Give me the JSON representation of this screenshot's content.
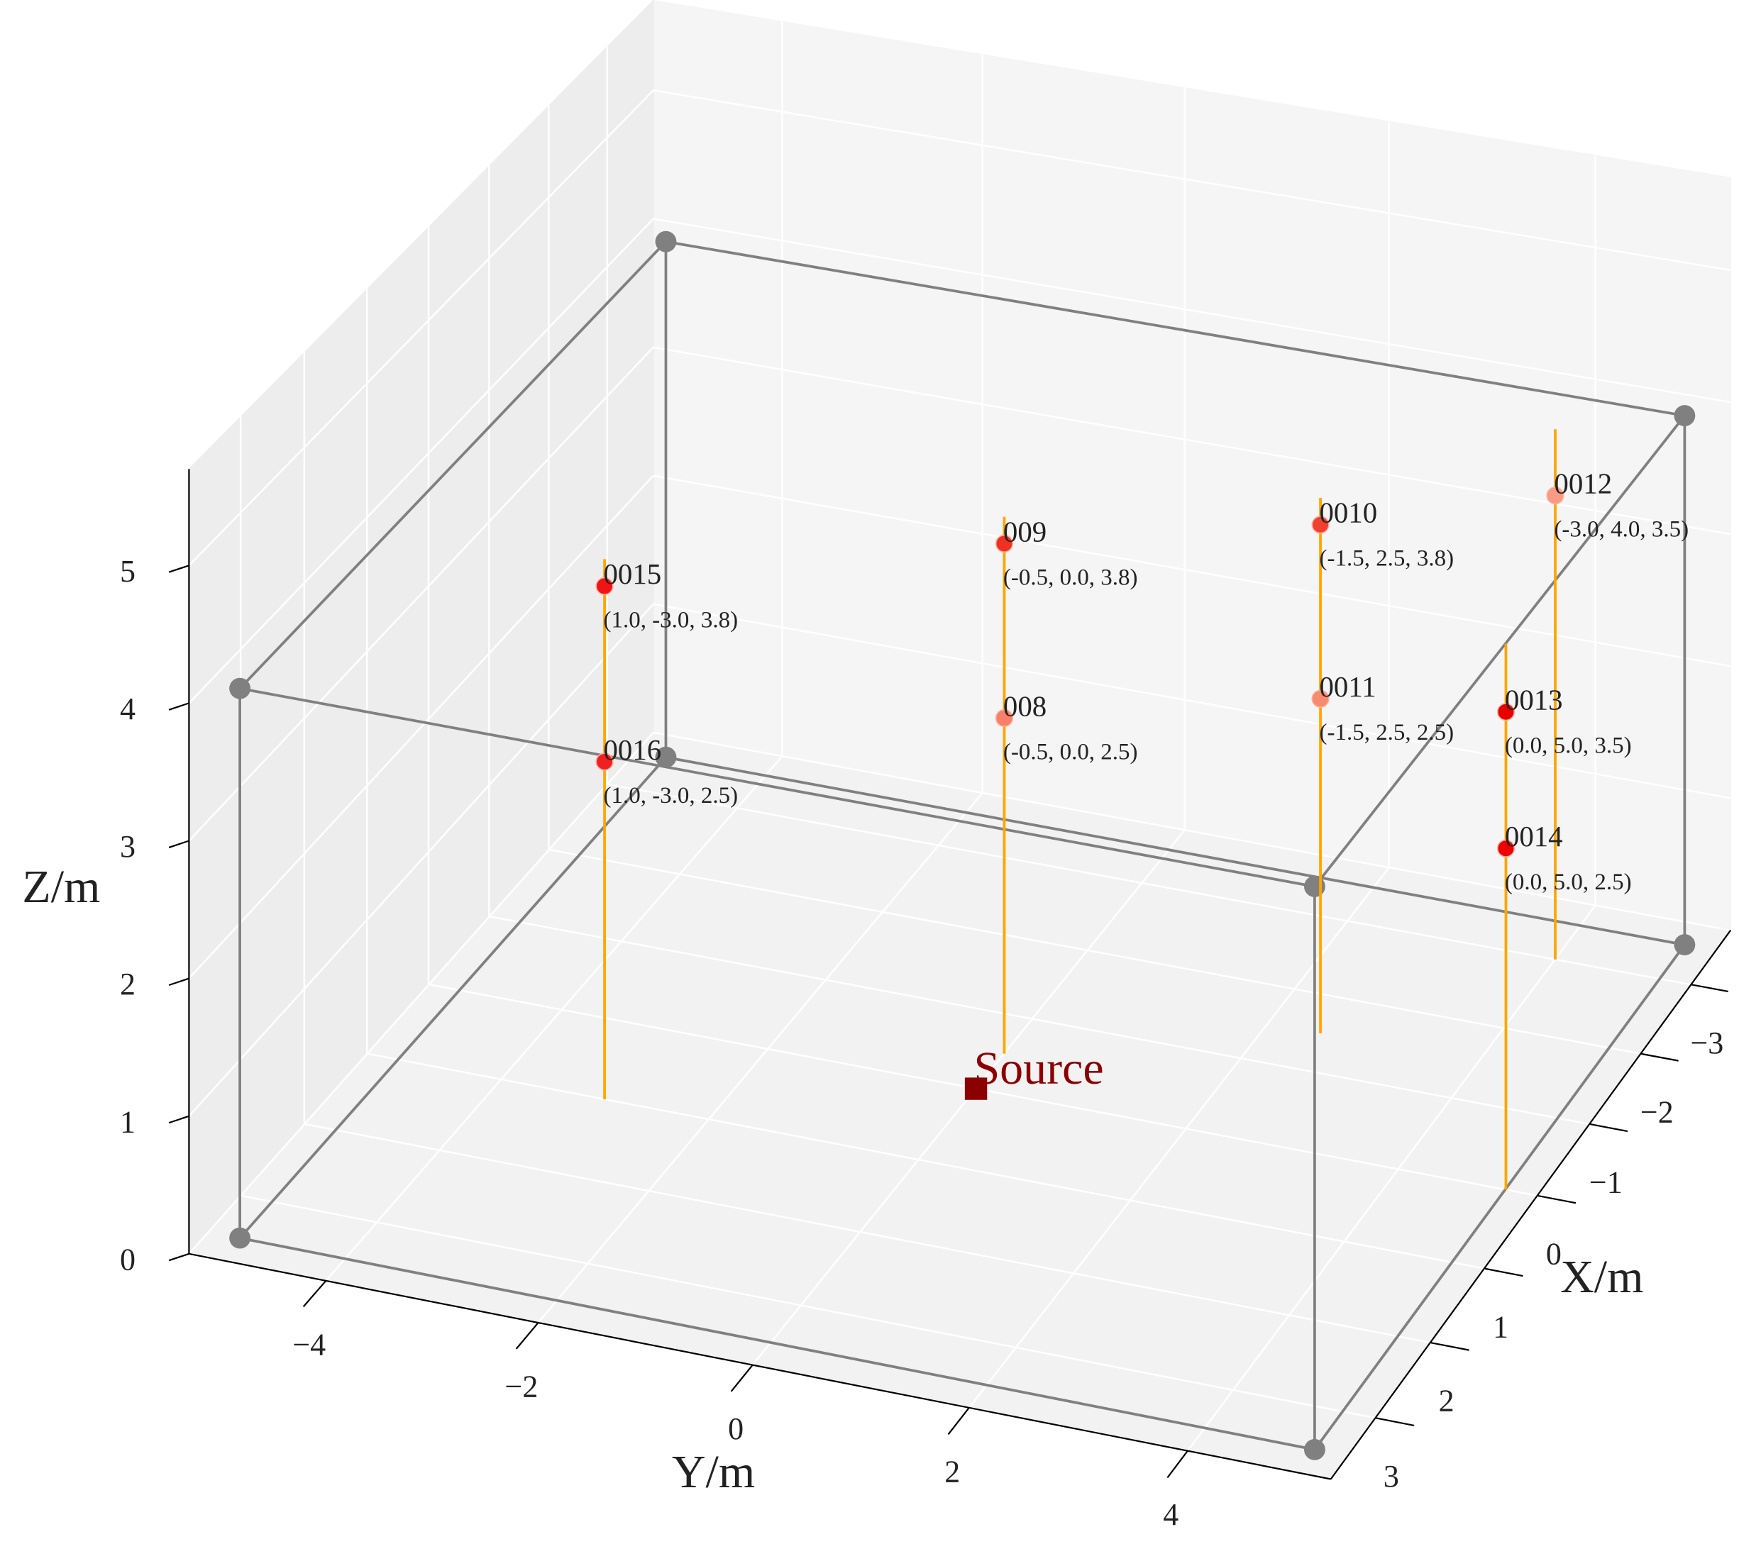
{
  "chart_data": {
    "type": "scatter3d",
    "xlabel": "X/m",
    "ylabel": "Y/m",
    "zlabel": "Z/m",
    "xlim": [
      -3.8,
      3.8
    ],
    "ylim": [
      -5.3,
      5.3
    ],
    "zlim": [
      0,
      5.7
    ],
    "xticks": [
      {
        "value": -3,
        "label": "−3"
      },
      {
        "value": -2,
        "label": "−2"
      },
      {
        "value": -1,
        "label": "−1"
      },
      0,
      1,
      2,
      3
    ],
    "yticks": [
      {
        "value": -4,
        "label": "−4"
      },
      {
        "value": -2,
        "label": "−2"
      },
      0,
      2,
      4
    ],
    "zticks": [
      0,
      1,
      2,
      3,
      4,
      5
    ],
    "grid": true,
    "room": {
      "xlim": [
        -3.5,
        3.5
      ],
      "ylim": [
        -5,
        5
      ],
      "zlim": [
        0,
        4
      ],
      "color": "#808080"
    },
    "poles": {
      "zlim": [
        0,
        4
      ],
      "color": "#ffa500"
    },
    "points": {
      "names": [
        "0015",
        "0016",
        "009",
        "008",
        "0010",
        "0011",
        "0012",
        "0013",
        "0014"
      ],
      "x": [
        1.0,
        1.0,
        -0.5,
        -0.5,
        -1.5,
        -1.5,
        -3.0,
        0.0,
        0.0
      ],
      "y": [
        -3.0,
        -3.0,
        0.0,
        0.0,
        2.5,
        2.5,
        4.0,
        5.0,
        5.0
      ],
      "z": [
        3.8,
        2.5,
        3.8,
        2.5,
        3.8,
        2.5,
        3.5,
        3.5,
        2.5
      ],
      "value_labels": [
        "(1.0, -3.0, 3.8)",
        "(1.0, -3.0, 2.5)",
        "(-0.5, 0.0, 3.8)",
        "(-0.5, 0.0, 2.5)",
        "(-1.5, 2.5, 3.8)",
        "(-1.5, 2.5, 2.5)",
        "(-3.0, 4.0, 3.5)",
        "(0.0, 5.0, 3.5)",
        "(0.0, 5.0, 2.5)"
      ],
      "colors": [
        "#f01414",
        "#f02020",
        "#f03020",
        "#f8806a",
        "#f04030",
        "#f88a70",
        "#f89a84",
        "#e80000",
        "#ee0000"
      ]
    },
    "source": {
      "name": "Source",
      "x": 0,
      "y": 0,
      "z": 0,
      "color": "#8b0000"
    }
  }
}
